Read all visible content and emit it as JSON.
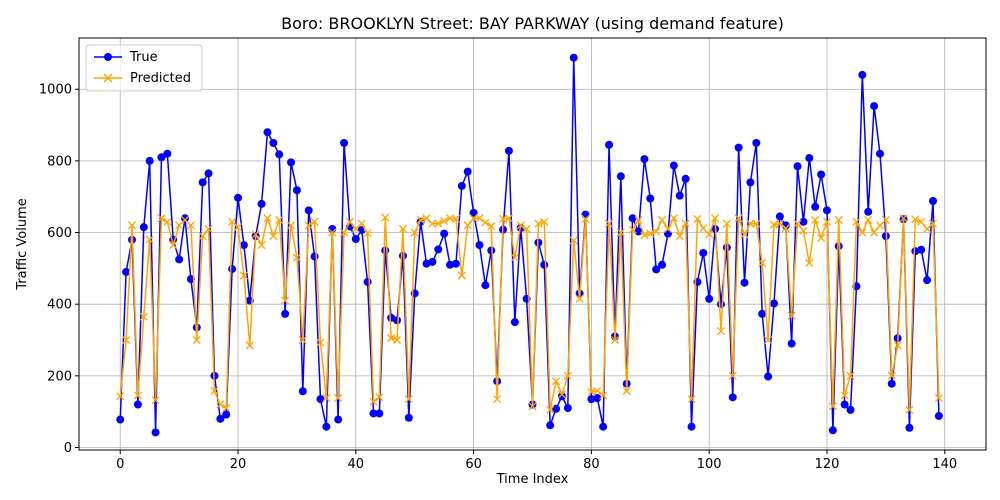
{
  "chart_data": {
    "type": "line",
    "title": "Boro: BROOKLYN Street: BAY PARKWAY (using demand feature)",
    "xlabel": "Time Index",
    "ylabel": "Traffic Volume",
    "xlim": [
      -7,
      147
    ],
    "ylim": [
      -7,
      1143
    ],
    "xticks": [
      0,
      20,
      40,
      60,
      80,
      100,
      120,
      140
    ],
    "yticks": [
      0,
      200,
      400,
      600,
      800,
      1000
    ],
    "grid": true,
    "legend_position": "upper-left",
    "series": [
      {
        "name": "True",
        "color": "#0000ff",
        "marker": "circle",
        "values": [
          78,
          490,
          580,
          120,
          615,
          800,
          42,
          810,
          820,
          580,
          525,
          640,
          470,
          335,
          740,
          765,
          200,
          80,
          92,
          498,
          697,
          565,
          410,
          590,
          680,
          880,
          850,
          818,
          373,
          796,
          718,
          157,
          662,
          533,
          135,
          58,
          610,
          78,
          850,
          617,
          582,
          607,
          462,
          95,
          95,
          550,
          362,
          355,
          535,
          83,
          430,
          630,
          513,
          518,
          553,
          597,
          510,
          513,
          730,
          770,
          655,
          565,
          453,
          550,
          185,
          608,
          828,
          350,
          613,
          415,
          120,
          572,
          510,
          62,
          108,
          143,
          110,
          1088,
          430,
          650,
          135,
          138,
          58,
          845,
          310,
          757,
          178,
          640,
          603,
          805,
          695,
          497,
          510,
          597,
          787,
          703,
          750,
          58,
          462,
          543,
          415,
          610,
          400,
          558,
          140,
          837,
          460,
          740,
          850,
          373,
          198,
          402,
          645,
          620,
          290,
          785,
          630,
          808,
          672,
          762,
          662,
          48,
          562,
          120,
          105,
          450,
          1040,
          658,
          953,
          820,
          590,
          178,
          305,
          637,
          55,
          548,
          552,
          467,
          688,
          88
        ]
      },
      {
        "name": "Predicted",
        "color": "#ffa500",
        "marker": "x",
        "values": [
          143,
          300,
          620,
          145,
          365,
          580,
          132,
          640,
          630,
          565,
          620,
          635,
          620,
          300,
          590,
          610,
          158,
          120,
          110,
          630,
          615,
          480,
          285,
          595,
          565,
          640,
          590,
          635,
          410,
          620,
          530,
          300,
          620,
          630,
          293,
          138,
          600,
          138,
          600,
          630,
          610,
          625,
          598,
          128,
          140,
          642,
          305,
          300,
          610,
          135,
          600,
          635,
          640,
          625,
          625,
          632,
          640,
          638,
          480,
          620,
          640,
          640,
          628,
          618,
          135,
          638,
          640,
          530,
          620,
          610,
          115,
          625,
          630,
          105,
          185,
          148,
          200,
          578,
          415,
          638,
          155,
          158,
          145,
          625,
          300,
          600,
          158,
          608,
          635,
          592,
          597,
          603,
          635,
          610,
          640,
          590,
          625,
          135,
          638,
          612,
          595,
          640,
          325,
          625,
          200,
          640,
          595,
          625,
          625,
          515,
          300,
          622,
          625,
          612,
          368,
          625,
          605,
          515,
          635,
          585,
          630,
          115,
          635,
          145,
          200,
          630,
          600,
          635,
          600,
          620,
          635,
          200,
          285,
          640,
          105,
          637,
          630,
          610,
          625,
          138
        ]
      }
    ]
  }
}
